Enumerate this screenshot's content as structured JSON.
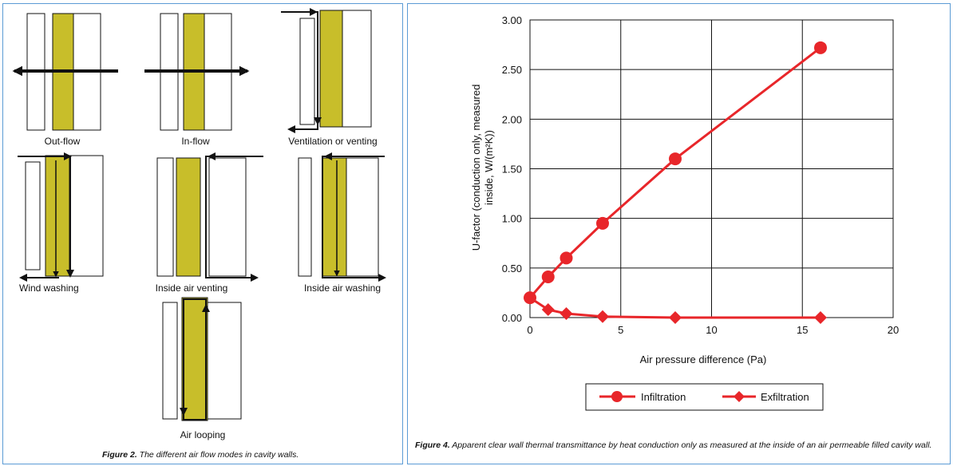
{
  "figure2": {
    "caption_label": "Figure 2.",
    "caption_text": " The different air flow modes in cavity walls.",
    "modes": [
      {
        "label": "Out-flow"
      },
      {
        "label": "In-flow"
      },
      {
        "label": "Ventilation or venting"
      },
      {
        "label": "Wind washing"
      },
      {
        "label": "Inside air venting"
      },
      {
        "label": "Inside air washing"
      },
      {
        "label": "Air looping"
      }
    ],
    "colors": {
      "insulation": "#c8be2a",
      "line": "#111111"
    }
  },
  "figure4": {
    "caption_label": "Figure 4.",
    "caption_text": " Apparent clear wall thermal transmittance by heat conduction only as measured at the inside of an air permeable filled cavity wall."
  },
  "chart_data": {
    "type": "line",
    "xlabel": "Air pressure difference (Pa)",
    "ylabel_line1": "U-factor (conduction only, measured",
    "ylabel_line2": "inside, W/(m²K))",
    "xlim": [
      0,
      20
    ],
    "ylim": [
      0,
      3
    ],
    "x_ticks": [
      "0",
      "5",
      "10",
      "15",
      "20"
    ],
    "y_ticks": [
      "0.00",
      "0.50",
      "1.00",
      "1.50",
      "2.00",
      "2.50",
      "3.00"
    ],
    "grid": true,
    "legend_position": "bottom",
    "color": "#e8262a",
    "series": [
      {
        "name": "Infiltration",
        "marker": "circle",
        "x": [
          0,
          1,
          2,
          4,
          8,
          16
        ],
        "y": [
          0.2,
          0.41,
          0.6,
          0.95,
          1.6,
          2.72
        ]
      },
      {
        "name": "Exfiltration",
        "marker": "diamond",
        "x": [
          0,
          1,
          2,
          4,
          8,
          16
        ],
        "y": [
          0.2,
          0.08,
          0.04,
          0.01,
          0.0,
          0.0
        ]
      }
    ]
  }
}
